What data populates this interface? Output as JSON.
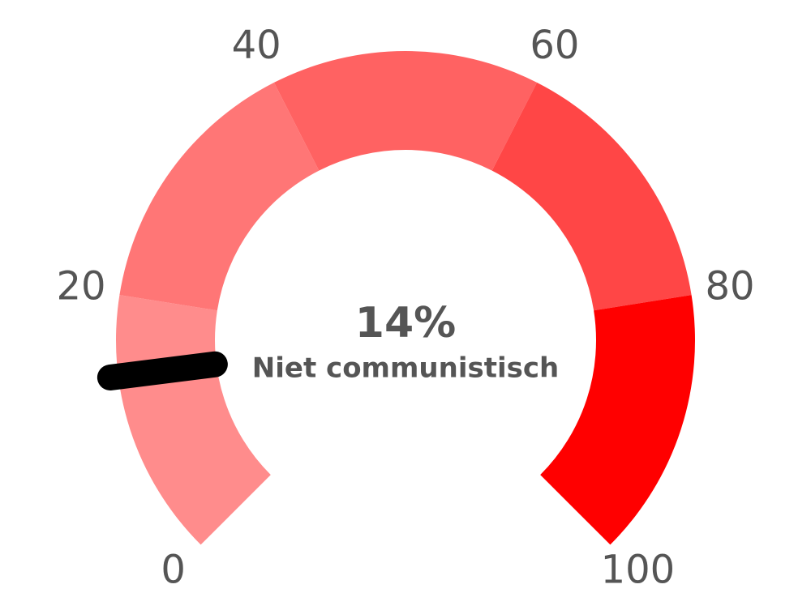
{
  "chart_data": {
    "type": "gauge",
    "value": 14,
    "value_label": "14%",
    "label": "Niet communistisch",
    "lim": [
      0,
      100
    ],
    "ticks": [
      0,
      20,
      40,
      60,
      80,
      100
    ],
    "band_colors": [
      "#ff8c8c",
      "#ff7676",
      "#ff6262",
      "#ff4646",
      "#ff0000"
    ],
    "needle_color": "#000000"
  }
}
